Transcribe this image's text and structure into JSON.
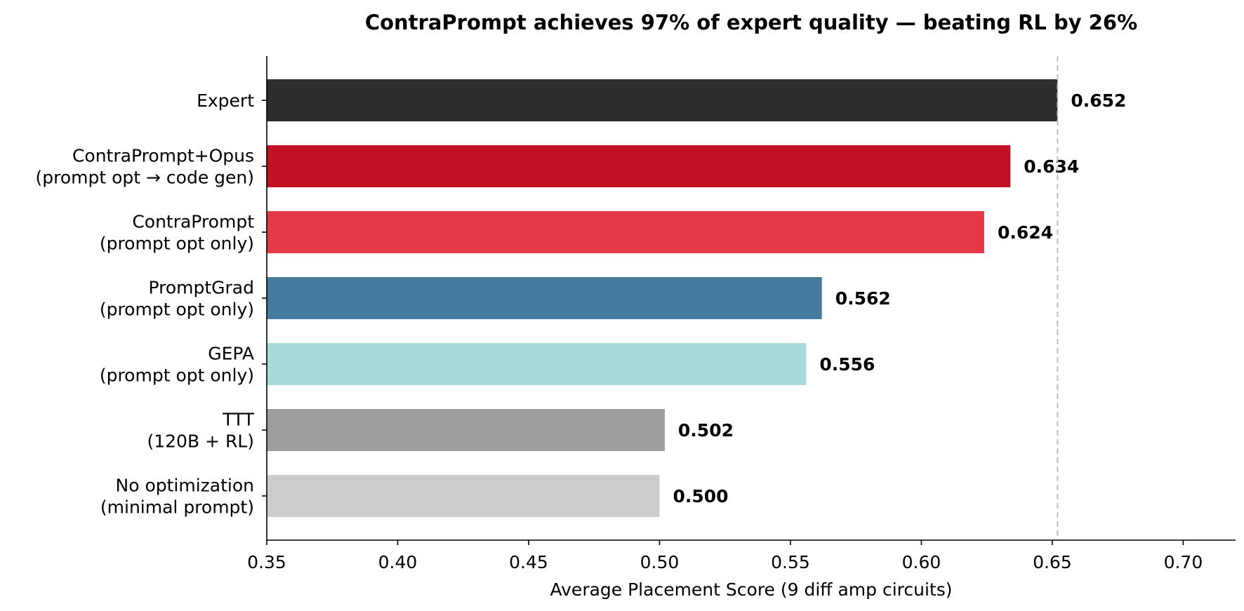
{
  "chart_data": {
    "type": "bar",
    "orientation": "horizontal",
    "title": "ContraPrompt achieves 97% of expert quality — beating RL by 26%",
    "xlabel": "Average Placement Score (9 diff amp circuits)",
    "ylabel": "",
    "xlim": [
      0.35,
      0.72
    ],
    "xticks": [
      "0.35",
      "0.40",
      "0.45",
      "0.50",
      "0.55",
      "0.60",
      "0.65",
      "0.70"
    ],
    "grid": false,
    "reference_line": {
      "x": 0.652,
      "style": "dashed",
      "color": "#bdbdbd"
    },
    "categories": [
      [
        "Expert"
      ],
      [
        "ContraPrompt+Opus",
        "(prompt opt → code gen)"
      ],
      [
        "ContraPrompt",
        "(prompt opt only)"
      ],
      [
        "PromptGrad",
        "(prompt opt only)"
      ],
      [
        "GEPA",
        "(prompt opt only)"
      ],
      [
        "TTT",
        "(120B + RL)"
      ],
      [
        "No optimization",
        "(minimal prompt)"
      ]
    ],
    "values": [
      0.652,
      0.634,
      0.624,
      0.562,
      0.556,
      0.502,
      0.5
    ],
    "value_labels": [
      "0.652",
      "0.634",
      "0.624",
      "0.562",
      "0.556",
      "0.502",
      "0.500"
    ],
    "colors": [
      "#2e2e2e",
      "#c11122",
      "#e63946",
      "#457b9d",
      "#a8dadc",
      "#9e9e9e",
      "#cccccc"
    ]
  }
}
